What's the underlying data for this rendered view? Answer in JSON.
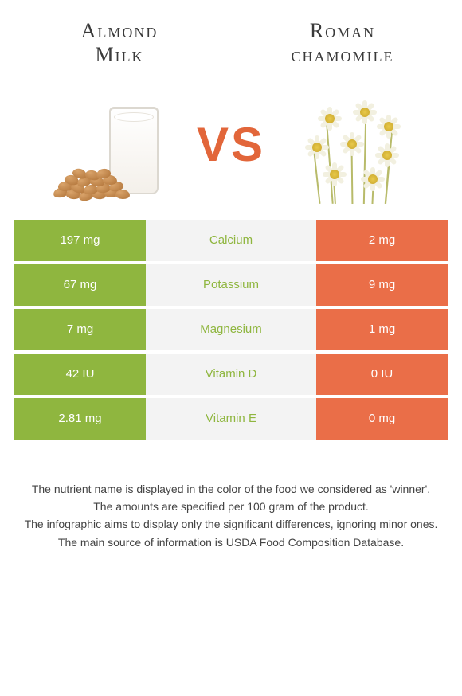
{
  "header": {
    "left_title": "Almond\nMilk",
    "right_title": "Roman\nchamomile"
  },
  "vs_label": "VS",
  "colors": {
    "left": "#8fb63f",
    "right": "#ea6e48",
    "mid_bg": "#f3f3f3",
    "nutrient_winner_left": "#8fb63f",
    "nutrient_winner_right": "#ea6e48",
    "text_dark": "#3a3a3a"
  },
  "nutrients": [
    {
      "name": "Calcium",
      "left": "197 mg",
      "right": "2 mg",
      "winner": "left"
    },
    {
      "name": "Potassium",
      "left": "67 mg",
      "right": "9 mg",
      "winner": "left"
    },
    {
      "name": "Magnesium",
      "left": "7 mg",
      "right": "1 mg",
      "winner": "left"
    },
    {
      "name": "Vitamin D",
      "left": "42 IU",
      "right": "0 IU",
      "winner": "left"
    },
    {
      "name": "Vitamin E",
      "left": "2.81 mg",
      "right": "0 mg",
      "winner": "left"
    }
  ],
  "footnotes": [
    "The nutrient name is displayed in the color of the food we considered as 'winner'.",
    "The amounts are specified per 100 gram of the product.",
    "The infographic aims to display only the significant differences, ignoring minor ones.",
    "The main source of information is USDA Food Composition Database."
  ]
}
